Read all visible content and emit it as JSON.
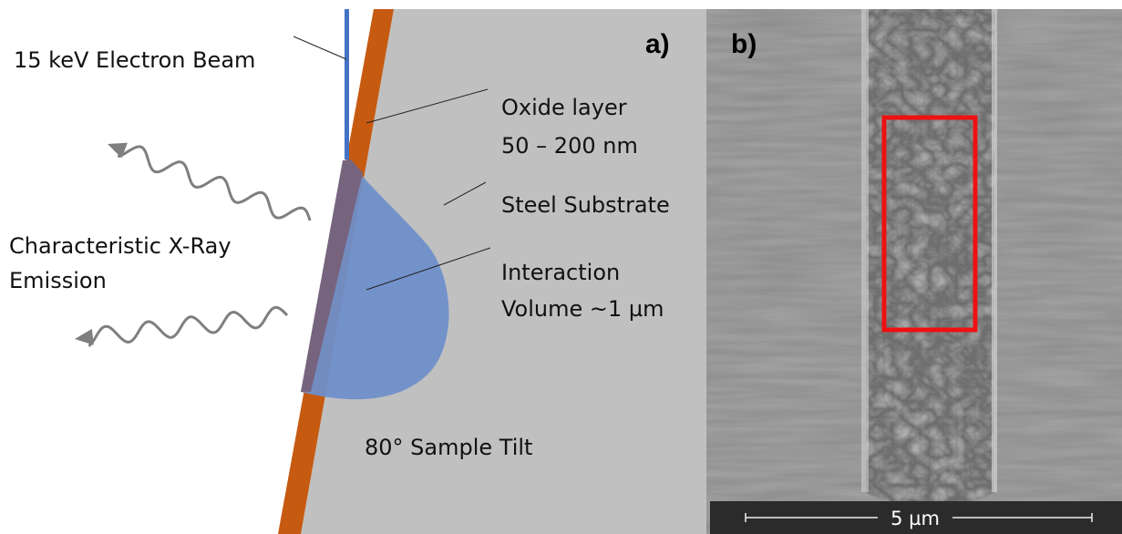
{
  "panel_a": {
    "label": "a)",
    "beam": "15 keV Electron Beam",
    "oxide": [
      "Oxide layer",
      "50 – 200 nm"
    ],
    "substrate": "Steel Substrate",
    "volume": [
      "Interaction",
      "Volume ~1 µm"
    ],
    "emission": [
      "Characteristic X-Ray",
      "Emission"
    ],
    "tilt": "80° Sample Tilt"
  },
  "panel_b": {
    "label": "b)",
    "scale_bar": "5 µm"
  }
}
